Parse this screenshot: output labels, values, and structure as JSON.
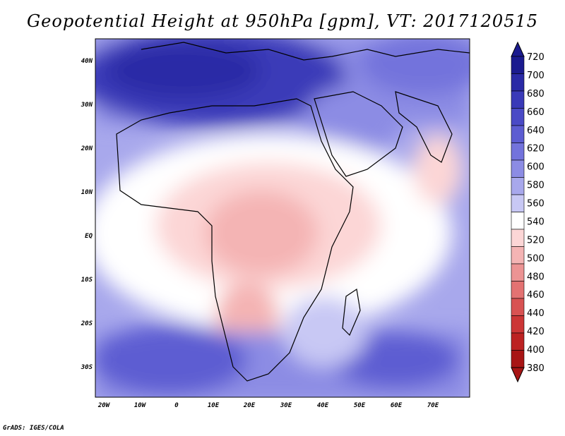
{
  "title": "Geopotential Height at 950hPa [gpm], VT: 2017120515",
  "footer": "GrADS: IGES/COLA",
  "map": {
    "lat_labels": [
      "40N",
      "30N",
      "20N",
      "10N",
      "EQ",
      "10S",
      "20S",
      "30S"
    ],
    "lon_labels": [
      "20W",
      "10W",
      "0",
      "10E",
      "20E",
      "30E",
      "40E",
      "50E",
      "60E",
      "70E"
    ]
  },
  "colorbar": {
    "levels": [
      "720",
      "700",
      "680",
      "660",
      "640",
      "620",
      "600",
      "580",
      "560",
      "540",
      "520",
      "500",
      "480",
      "460",
      "440",
      "420",
      "400",
      "380"
    ],
    "colors": [
      "#1b1b8f",
      "#2a2aa6",
      "#3a3ab8",
      "#4a4ac6",
      "#5d5dd2",
      "#7373dc",
      "#8c8ce4",
      "#a8a8ec",
      "#c8c8f4",
      "#ffffff",
      "#fcd6d6",
      "#f4b4b4",
      "#ec9494",
      "#e37272",
      "#d85252",
      "#cc3636",
      "#bc2222",
      "#a81515"
    ]
  }
}
